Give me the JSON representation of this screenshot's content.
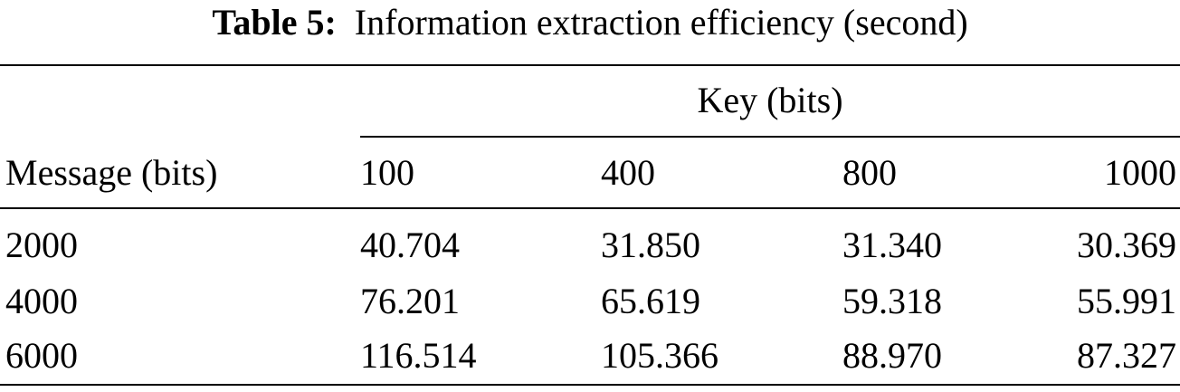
{
  "caption": {
    "label": "Table 5:",
    "text": "Information extraction efficiency (second)"
  },
  "table": {
    "group_header": "Key (bits)",
    "row_header": "Message (bits)",
    "columns": [
      "100",
      "400",
      "800",
      "1000"
    ],
    "rows": [
      {
        "message": "2000",
        "values": [
          "40.704",
          "31.850",
          "31.340",
          "30.369"
        ]
      },
      {
        "message": "4000",
        "values": [
          "76.201",
          "65.619",
          "59.318",
          "55.991"
        ]
      },
      {
        "message": "6000",
        "values": [
          "116.514",
          "105.366",
          "88.970",
          "87.327"
        ]
      }
    ]
  }
}
